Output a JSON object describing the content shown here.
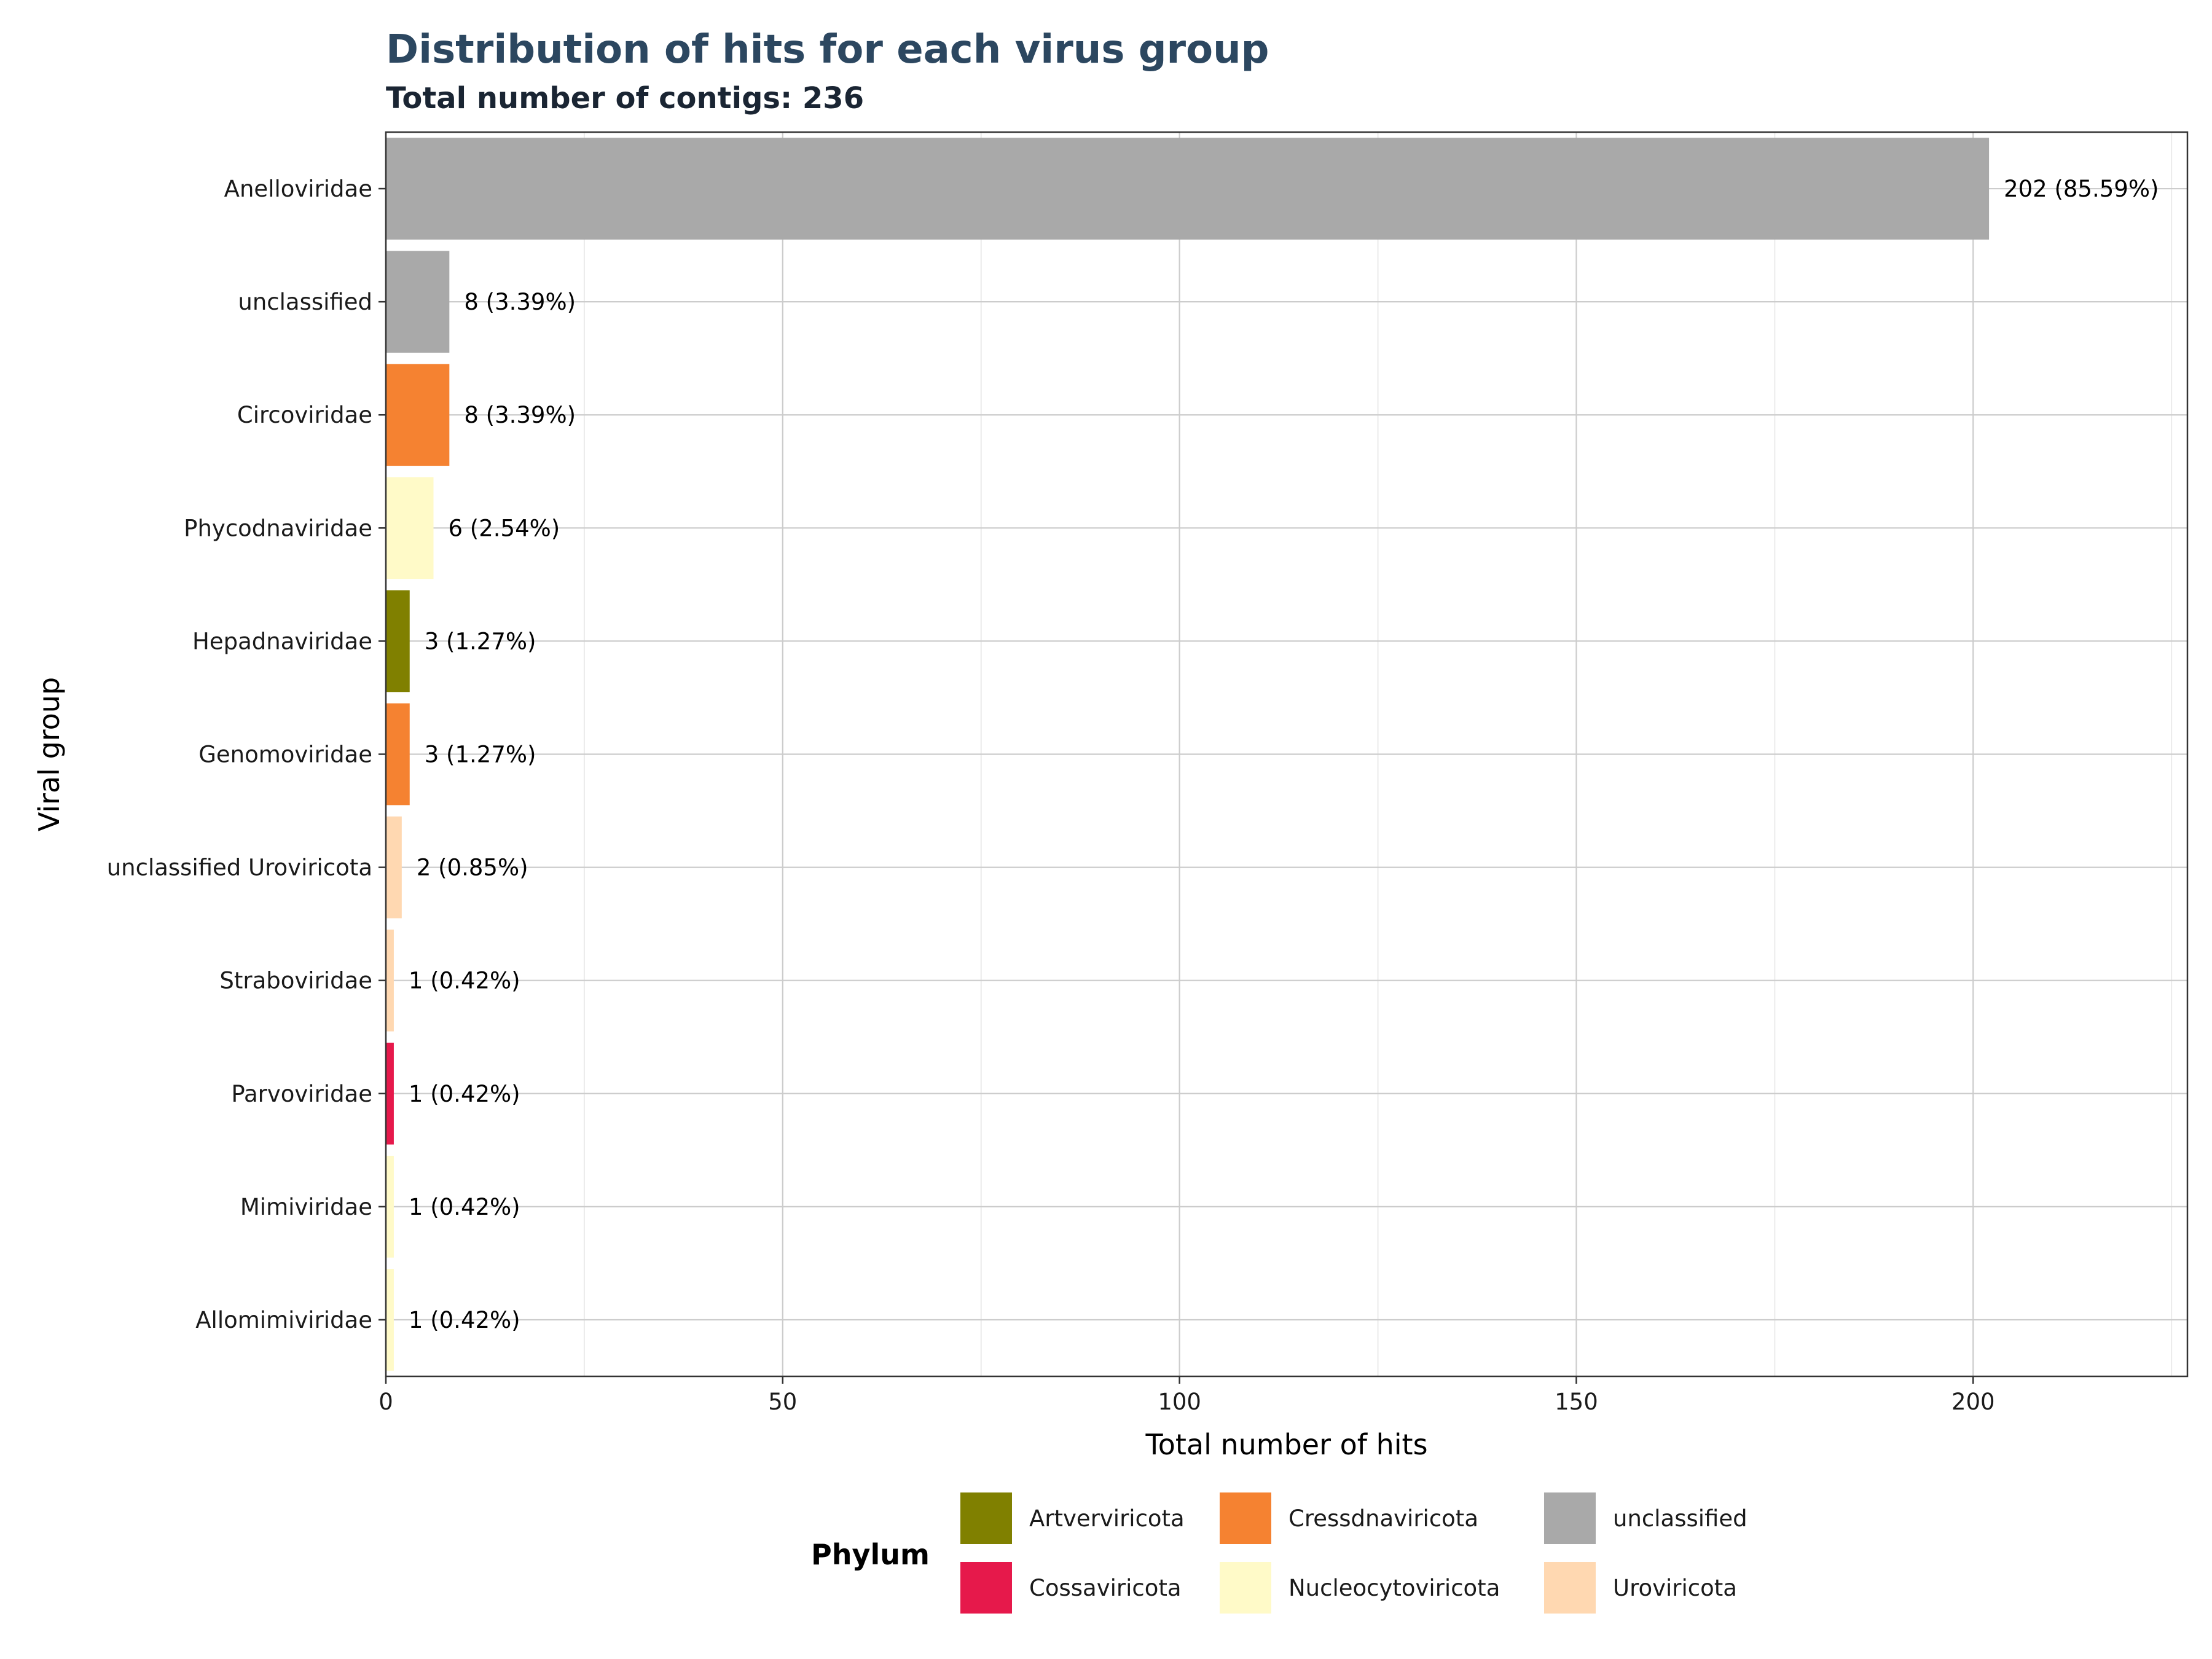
{
  "chart_data": {
    "type": "bar",
    "orientation": "horizontal",
    "title": "Distribution of hits for each virus group",
    "subtitle": "Total number of contigs: 236",
    "xlabel": "Total number of hits",
    "ylabel": "Viral group",
    "xlim": [
      0,
      227
    ],
    "xticks": [
      0,
      50,
      100,
      150,
      200
    ],
    "grid": true,
    "categories": [
      "Anelloviridae",
      "unclassified",
      "Circoviridae",
      "Phycodnaviridae",
      "Hepadnaviridae",
      "Genomoviridae",
      "unclassified Uroviricota",
      "Straboviridae",
      "Parvoviridae",
      "Mimiviridae",
      "Allomimiviridae"
    ],
    "values": [
      202,
      8,
      8,
      6,
      3,
      3,
      2,
      1,
      1,
      1,
      1
    ],
    "labels": [
      "202 (85.59%)",
      "8 (3.39%)",
      "8 (3.39%)",
      "6 (2.54%)",
      "3 (1.27%)",
      "3 (1.27%)",
      "2 (0.85%)",
      "1 (0.42%)",
      "1 (0.42%)",
      "1 (0.42%)",
      "1 (0.42%)"
    ],
    "phylum": [
      "unclassified",
      "unclassified",
      "Cressdnaviricota",
      "Nucleocytoviricota",
      "Artverviricota",
      "Cressdnaviricota",
      "Uroviricota",
      "Uroviricota",
      "Cossaviricota",
      "Nucleocytoviricota",
      "Nucleocytoviricota"
    ],
    "legend": {
      "title": "Phylum",
      "position": "bottom",
      "entries": [
        {
          "name": "Artverviricota",
          "color": "#808000"
        },
        {
          "name": "Cossaviricota",
          "color": "#e6194b"
        },
        {
          "name": "Cressdnaviricota",
          "color": "#f58231"
        },
        {
          "name": "Nucleocytoviricota",
          "color": "#fffac8"
        },
        {
          "name": "unclassified",
          "color": "#a9a9a9"
        },
        {
          "name": "Uroviricota",
          "color": "#ffd8b1"
        }
      ]
    }
  }
}
